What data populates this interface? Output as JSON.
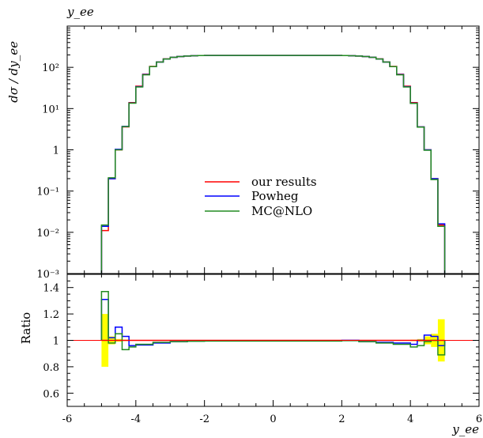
{
  "chart_data": [
    {
      "type": "line",
      "title": "y_ee",
      "ylabel": "dσ / dy_ee",
      "xlabel": "",
      "yscale": "log",
      "xlim": [
        -6,
        6
      ],
      "ylim": [
        0.001,
        1000
      ],
      "ytick_labels": [
        "10⁻³",
        "10⁻²",
        "10⁻¹",
        "1",
        "10¹",
        "10²"
      ],
      "ytick_values": [
        0.001,
        0.01,
        0.1,
        1,
        10,
        100
      ],
      "bin_edges": [
        -5.0,
        -4.8,
        -4.6,
        -4.4,
        -4.2,
        -4.0,
        -3.8,
        -3.6,
        -3.4,
        -3.2,
        -3.0,
        -2.8,
        -2.6,
        -2.4,
        -2.2,
        -2.0,
        2.0,
        2.2,
        2.4,
        2.6,
        2.8,
        3.0,
        3.2,
        3.4,
        3.6,
        3.8,
        4.0,
        4.2,
        4.4,
        4.6,
        4.8,
        5.0
      ],
      "series": [
        {
          "name": "our results",
          "color": "#ff0000",
          "values": [
            0.011,
            0.2,
            1.0,
            3.6,
            14,
            35,
            68,
            105,
            135,
            160,
            175,
            183,
            188,
            191,
            193,
            194,
            193,
            191,
            188,
            183,
            175,
            160,
            135,
            105,
            68,
            35,
            14,
            3.6,
            1.0,
            0.2,
            0.015
          ]
        },
        {
          "name": "Powheg",
          "color": "#0000ff",
          "values": [
            0.014,
            0.2,
            1.03,
            3.7,
            13.7,
            34,
            67,
            104,
            134,
            159,
            175,
            183,
            188,
            191,
            193,
            194,
            193,
            191,
            188,
            183,
            175,
            159,
            134,
            104,
            67,
            34,
            13.5,
            3.6,
            1.0,
            0.2,
            0.016
          ]
        },
        {
          "name": "MC@NLO",
          "color": "#228b22",
          "values": [
            0.015,
            0.21,
            1.0,
            3.65,
            13.5,
            33.5,
            66,
            104,
            134,
            159,
            175,
            183,
            188,
            191,
            193,
            194,
            193,
            191,
            188,
            183,
            175,
            159,
            134,
            104,
            66,
            33.5,
            13.4,
            3.55,
            0.98,
            0.19,
            0.014
          ]
        }
      ],
      "legend": {
        "position": "center-right",
        "entries": [
          "our results",
          "Powheg",
          "MC@NLO"
        ]
      },
      "grid": false
    },
    {
      "type": "line",
      "title": "",
      "xlabel": "y_ee",
      "ylabel": "Ratio",
      "xlim": [
        -6,
        6
      ],
      "ylim": [
        0.5,
        1.5
      ],
      "xtick_labels": [
        "-6",
        "-4",
        "-2",
        "0",
        "2",
        "4",
        "6"
      ],
      "xtick_values": [
        -6,
        -4,
        -2,
        0,
        2,
        4,
        6
      ],
      "ytick_labels": [
        "0.6",
        "0.8",
        "1",
        "1.2",
        "1.4"
      ],
      "ytick_values": [
        0.6,
        0.8,
        1.0,
        1.2,
        1.4
      ],
      "bin_edges": [
        -5.0,
        -4.8,
        -4.6,
        -4.4,
        -4.2,
        -4.0,
        -3.5,
        -3.0,
        -2.5,
        -2.0,
        2.0,
        2.5,
        3.0,
        3.5,
        4.0,
        4.2,
        4.4,
        4.6,
        4.8,
        5.0
      ],
      "uncertainty_band": {
        "color": "#ffff00",
        "lower": [
          0.8,
          0.97,
          0.99,
          0.995,
          0.997,
          0.998,
          0.999,
          0.999,
          0.999,
          0.999,
          0.999,
          0.999,
          0.998,
          0.997,
          0.995,
          0.99,
          0.97,
          0.95,
          0.84
        ],
        "upper": [
          1.2,
          1.03,
          1.01,
          1.005,
          1.003,
          1.002,
          1.001,
          1.001,
          1.001,
          1.001,
          1.001,
          1.001,
          1.002,
          1.003,
          1.005,
          1.01,
          1.03,
          1.05,
          1.16
        ]
      },
      "series": [
        {
          "name": "our results",
          "color": "#ff0000",
          "values": [
            1.0,
            1.0,
            1.0,
            1.0,
            1.0,
            1.0,
            1.0,
            1.0,
            1.0,
            1.0,
            1.0,
            1.0,
            1.0,
            1.0,
            1.0,
            1.0,
            1.0,
            1.0,
            1.0
          ]
        },
        {
          "name": "Powheg",
          "color": "#0000ff",
          "values": [
            1.31,
            1.02,
            1.1,
            1.03,
            0.96,
            0.965,
            0.98,
            0.99,
            0.995,
            0.998,
            1.0,
            0.99,
            0.985,
            0.98,
            0.97,
            1.0,
            1.04,
            1.03,
            0.96
          ]
        },
        {
          "name": "MC@NLO",
          "color": "#228b22",
          "values": [
            1.37,
            0.98,
            1.05,
            0.93,
            0.95,
            0.97,
            0.985,
            0.99,
            0.993,
            0.995,
            0.998,
            0.99,
            0.98,
            0.97,
            0.95,
            0.96,
            0.99,
            1.0,
            0.89
          ]
        }
      ],
      "grid": false
    }
  ]
}
